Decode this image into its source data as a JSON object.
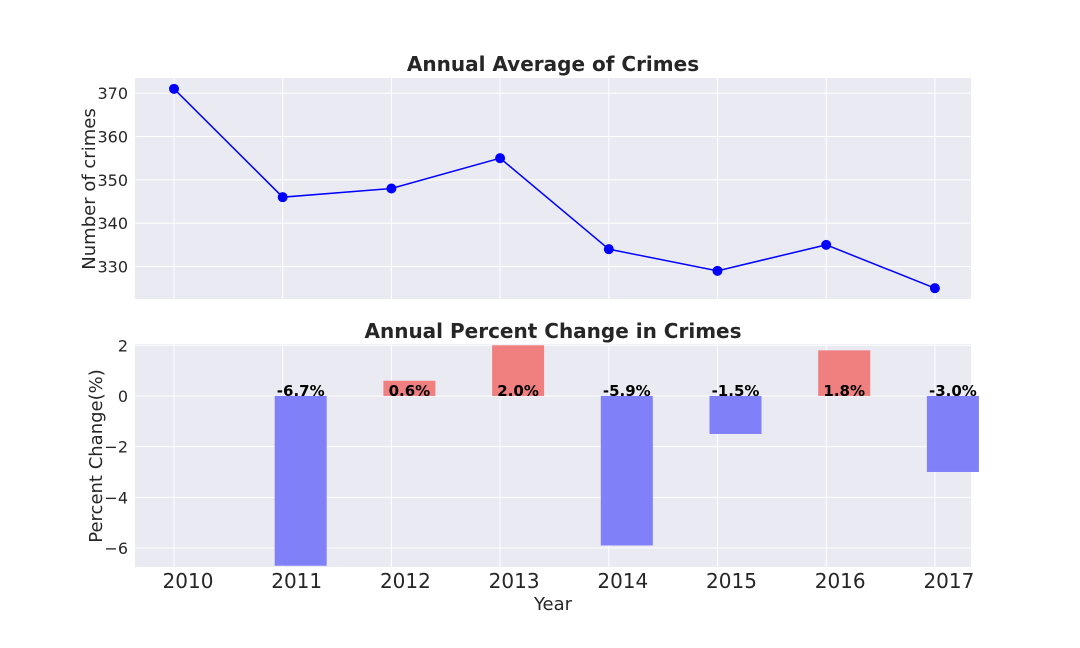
{
  "chart_data": [
    {
      "type": "line",
      "title": "Annual Average of Crimes",
      "xlabel": "",
      "ylabel": "Number of crimes",
      "x": [
        2010,
        2011,
        2012,
        2013,
        2014,
        2015,
        2016,
        2017
      ],
      "y": [
        371,
        346,
        348,
        355,
        334,
        329,
        335,
        325
      ],
      "ylim": [
        322.5,
        373.5
      ],
      "yticks": [
        "330",
        "340",
        "350",
        "360",
        "370"
      ],
      "grid": true,
      "colors": {
        "line": "#0000ff",
        "marker": "#0000ff",
        "background": "#eaeaf2",
        "grid": "#ffffff"
      }
    },
    {
      "type": "bar",
      "title": "Annual Percent Change in Crimes",
      "xlabel": "Year",
      "ylabel": "Percent Change(%)",
      "categories": [
        "2010",
        "2011",
        "2012",
        "2013",
        "2014",
        "2015",
        "2016",
        "2017"
      ],
      "values": [
        null,
        -6.7,
        0.6,
        2.0,
        -5.9,
        -1.5,
        1.8,
        -3.0
      ],
      "data_labels": [
        "",
        "-6.7%",
        "0.6%",
        "2.0%",
        "-5.9%",
        "-1.5%",
        "1.8%",
        "-3.0%"
      ],
      "ylim": [
        -6.75,
        2.05
      ],
      "yticks": [
        "−6",
        "−4",
        "−2",
        "0",
        "2"
      ],
      "grid": true,
      "colors": {
        "positive": "#f08080",
        "negative": "#8080f8",
        "background": "#eaeaf2",
        "grid": "#ffffff"
      }
    }
  ]
}
